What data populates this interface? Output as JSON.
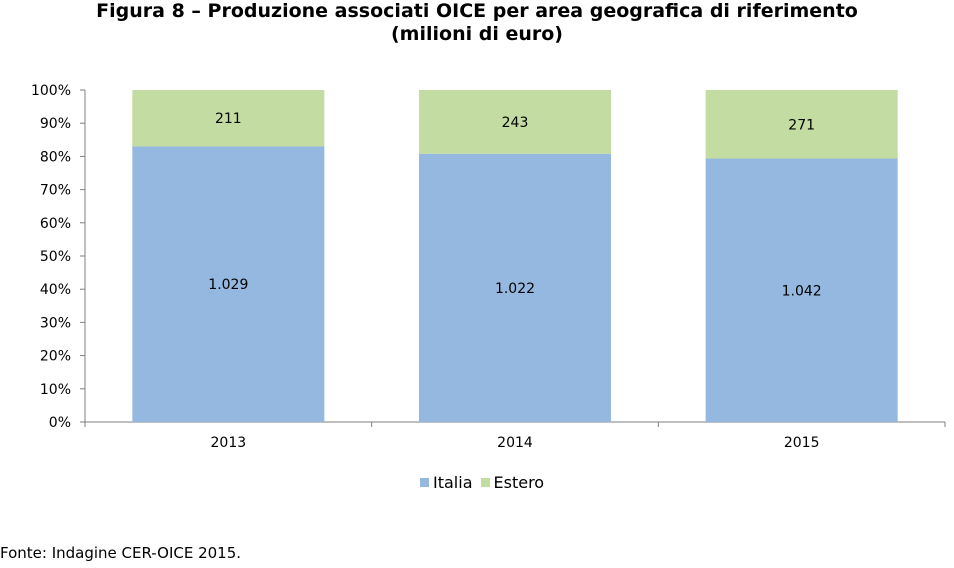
{
  "title_line1": "Figura 8 – Produzione associati OICE per area geografica di riferimento",
  "title_line2": "(milioni di euro)",
  "source": "Fonte: Indagine CER-OICE 2015.",
  "chart_data": {
    "type": "bar",
    "stacked": "percent",
    "categories": [
      "2013",
      "2014",
      "2015"
    ],
    "series": [
      {
        "name": "Italia",
        "values": [
          1029,
          1022,
          1042
        ],
        "labels": [
          "1.029",
          "1.022",
          "1.042"
        ],
        "color": "#95b8e0"
      },
      {
        "name": "Estero",
        "values": [
          211,
          243,
          271
        ],
        "labels": [
          "211",
          "243",
          "271"
        ],
        "color": "#c3dca2"
      }
    ],
    "ylim": [
      0,
      100
    ],
    "yticks": [
      "0%",
      "10%",
      "20%",
      "30%",
      "40%",
      "50%",
      "60%",
      "70%",
      "80%",
      "90%",
      "100%"
    ],
    "legend": "bottom",
    "grid": false
  }
}
